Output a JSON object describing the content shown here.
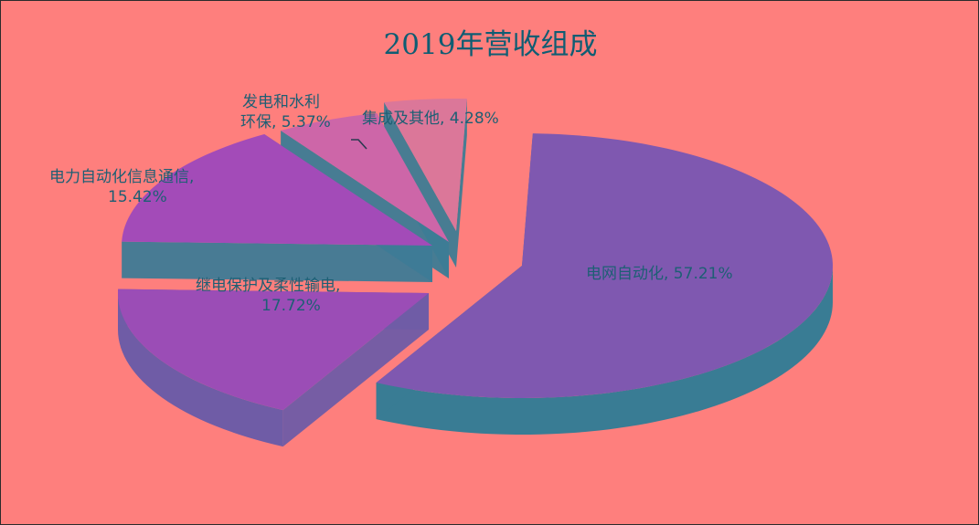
{
  "chart_data": {
    "type": "pie",
    "title": "2019年营收组成",
    "slices": [
      {
        "label": "电网自动化",
        "value": 57.21,
        "pct_label": "57.21%",
        "top": "#7f58b0",
        "side": "#397c94"
      },
      {
        "label": "继电保护及柔性输电",
        "value": 17.72,
        "pct_label": "17.72%",
        "top": "#9b4db6",
        "side": "#6f5ca6"
      },
      {
        "label": "电力自动化信息通信",
        "value": 15.42,
        "pct_label": "15.42%",
        "top": "#a34bb8",
        "side": "#3e7b96"
      },
      {
        "label": "发电和水利环保",
        "value": 5.37,
        "pct_label": "5.37%",
        "top": "#cd66a8",
        "side": "#3d7c95"
      },
      {
        "label": "集成及其他",
        "value": 4.28,
        "pct_label": "4.28%",
        "top": "#db7799",
        "side": "#3e7c94"
      }
    ]
  },
  "labels": {
    "s0": "电网自动化, 57.21%",
    "s1_line1": "继电保护及柔性输电,",
    "s1_line2": "17.72%",
    "s2_line1": "电力自动化信息通信,",
    "s2_line2": "15.42%",
    "s3_line1": "发电和水利",
    "s3_line2": "环保, 5.37%",
    "s4": "集成及其他, 4.28%"
  }
}
